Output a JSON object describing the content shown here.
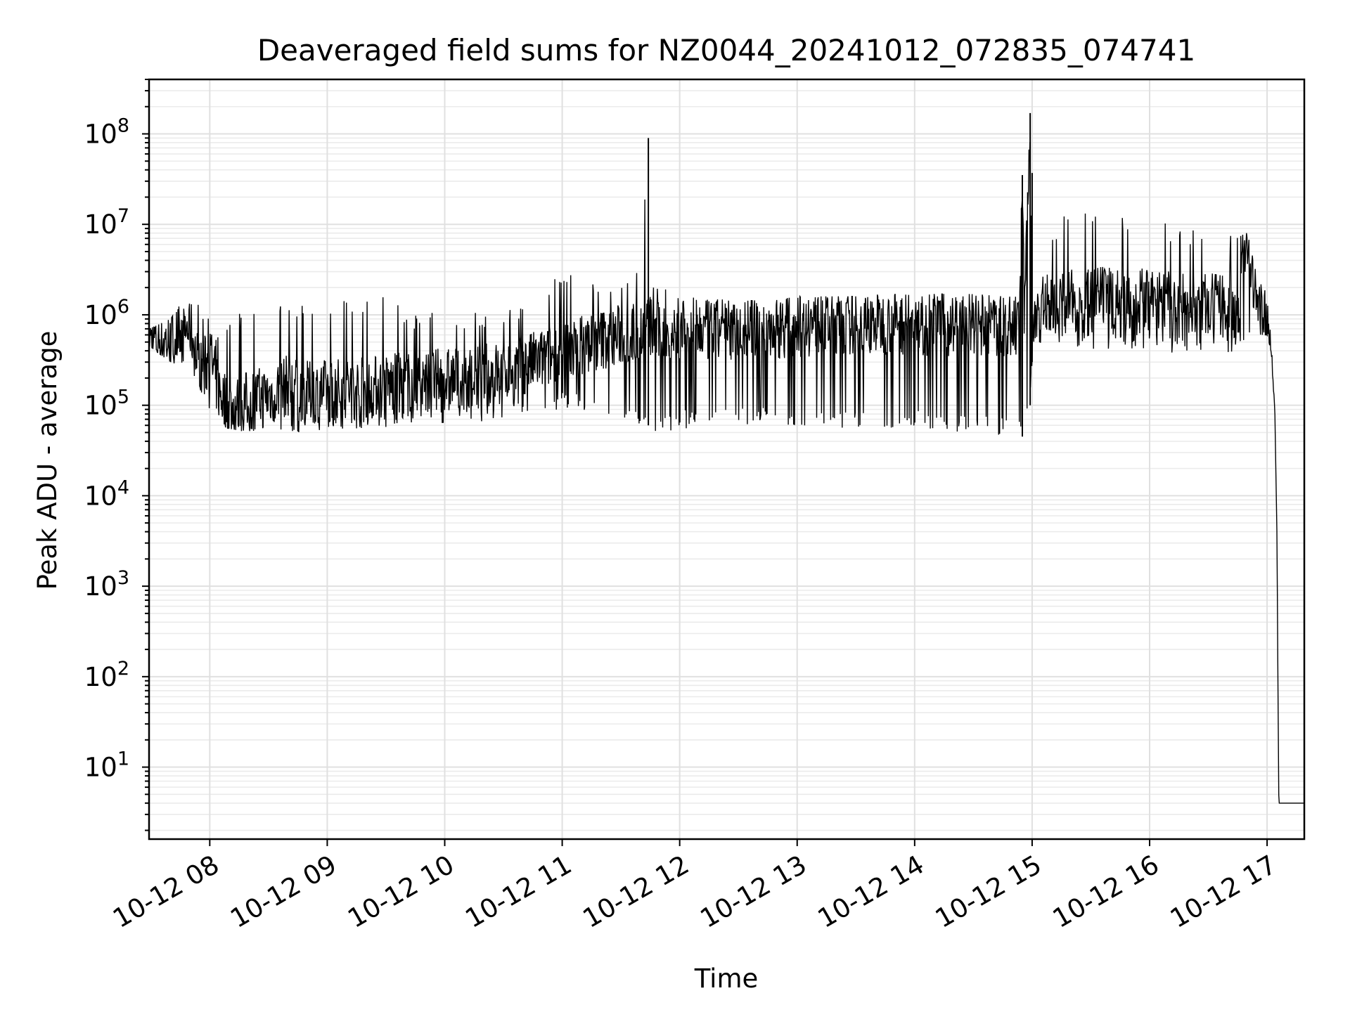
{
  "chart_data": {
    "type": "line",
    "title": "Deaveraged field sums for NZ0044_20241012_072835_074741",
    "xlabel": "Time",
    "ylabel": "Peak ADU - average",
    "yscale": "log",
    "grid": true,
    "color": "#000000",
    "xlim": [
      "2024-10-12 07:29",
      "2024-10-12 17:19"
    ],
    "ylim": [
      1.6,
      400000000
    ],
    "x_tick_labels": [
      "10-12 08",
      "10-12 09",
      "10-12 10",
      "10-12 11",
      "10-12 12",
      "10-12 13",
      "10-12 14",
      "10-12 15",
      "10-12 16",
      "10-12 17"
    ],
    "y_ticks": [
      {
        "base": "10",
        "exp": "1",
        "value": 10
      },
      {
        "base": "10",
        "exp": "2",
        "value": 100
      },
      {
        "base": "10",
        "exp": "3",
        "value": 1000
      },
      {
        "base": "10",
        "exp": "4",
        "value": 10000
      },
      {
        "base": "10",
        "exp": "5",
        "value": 100000
      },
      {
        "base": "10",
        "exp": "6",
        "value": 1000000
      },
      {
        "base": "10",
        "exp": "7",
        "value": 10000000
      },
      {
        "base": "10",
        "exp": "8",
        "value": 100000000
      }
    ],
    "series": [
      {
        "x": [
          "2024-10-12 07:29",
          "2024-10-12 07:40",
          "2024-10-12 07:50",
          "2024-10-12 07:55",
          "2024-10-12 08:00",
          "2024-10-12 08:05",
          "2024-10-12 08:10",
          "2024-10-12 08:20",
          "2024-10-12 08:30",
          "2024-10-12 08:40",
          "2024-10-12 08:50",
          "2024-10-12 09:00",
          "2024-10-12 09:15",
          "2024-10-12 09:30",
          "2024-10-12 09:45",
          "2024-10-12 10:00",
          "2024-10-12 10:15",
          "2024-10-12 10:30",
          "2024-10-12 10:45",
          "2024-10-12 11:00",
          "2024-10-12 11:15",
          "2024-10-12 11:30",
          "2024-10-12 11:40",
          "2024-10-12 11:44",
          "2024-10-12 11:46",
          "2024-10-12 11:50",
          "2024-10-12 12:00",
          "2024-10-12 12:15",
          "2024-10-12 12:30",
          "2024-10-12 12:45",
          "2024-10-12 13:00",
          "2024-10-12 13:15",
          "2024-10-12 13:30",
          "2024-10-12 13:45",
          "2024-10-12 14:00",
          "2024-10-12 14:15",
          "2024-10-12 14:30",
          "2024-10-12 14:45",
          "2024-10-12 14:53",
          "2024-10-12 14:55",
          "2024-10-12 14:56",
          "2024-10-12 14:59",
          "2024-10-12 15:00",
          "2024-10-12 15:02",
          "2024-10-12 15:05",
          "2024-10-12 15:15",
          "2024-10-12 15:30",
          "2024-10-12 15:45",
          "2024-10-12 16:00",
          "2024-10-12 16:15",
          "2024-10-12 16:30",
          "2024-10-12 16:45",
          "2024-10-12 16:50",
          "2024-10-12 16:55",
          "2024-10-12 17:00",
          "2024-10-12 17:02",
          "2024-10-12 17:04",
          "2024-10-12 17:05",
          "2024-10-12 17:06",
          "2024-10-12 17:08",
          "2024-10-12 17:19"
        ],
        "y": [
          600000,
          550000,
          800000,
          250000,
          350000,
          150000,
          100000,
          120000,
          140000,
          180000,
          150000,
          160000,
          170000,
          180000,
          200000,
          210000,
          230000,
          260000,
          320000,
          420000,
          550000,
          650000,
          700000,
          900000,
          750000,
          650000,
          700000,
          720000,
          750000,
          780000,
          820000,
          850000,
          870000,
          880000,
          860000,
          850000,
          840000,
          820000,
          800000,
          35000000,
          800000,
          160000000,
          900000,
          1200000,
          1400000,
          1500000,
          1600000,
          1700000,
          1600000,
          1500000,
          1400000,
          1300000,
          7000000,
          1200000,
          900000,
          400000,
          80000,
          4000,
          4,
          4,
          4
        ],
        "envelope_low": [
          450000,
          300000,
          250000,
          150000,
          90000,
          60000,
          55000,
          50000,
          50000,
          45000,
          45000,
          50000,
          55000,
          55000,
          60000,
          60000,
          65000,
          70000,
          80000,
          90000,
          80000,
          70000,
          60000,
          60000,
          40000,
          50000,
          55000,
          55000,
          60000,
          60000,
          60000,
          55000,
          55000,
          55000,
          55000,
          50000,
          50000,
          45000,
          45000,
          45000,
          45000,
          100000,
          300000,
          400000,
          450000,
          500000,
          400000,
          400000,
          400000,
          350000,
          300000,
          400000,
          500000,
          600000,
          600000,
          400000,
          80000,
          4000,
          4,
          4,
          4
        ],
        "envelope_high": [
          700000,
          900000,
          1900000,
          1200000,
          900000,
          800000,
          1000000,
          1100000,
          1200000,
          1300000,
          1300000,
          1400000,
          1500000,
          1600000,
          1100000,
          1200000,
          1100000,
          1300000,
          1400000,
          3500000,
          2800000,
          2700000,
          3000000,
          90000000,
          2500000,
          2200000,
          1800000,
          1600000,
          1500000,
          1400000,
          1600000,
          1600000,
          1600000,
          1700000,
          1700000,
          1700000,
          1700000,
          1600000,
          1600000,
          35000000,
          2000000,
          170000000,
          37000000,
          10000000,
          6000000,
          13000000,
          16000000,
          12000000,
          11000000,
          10000000,
          9000000,
          8000000,
          8000000,
          2500000,
          1800000,
          600000,
          80000,
          4000,
          4,
          4,
          4
        ]
      }
    ]
  }
}
